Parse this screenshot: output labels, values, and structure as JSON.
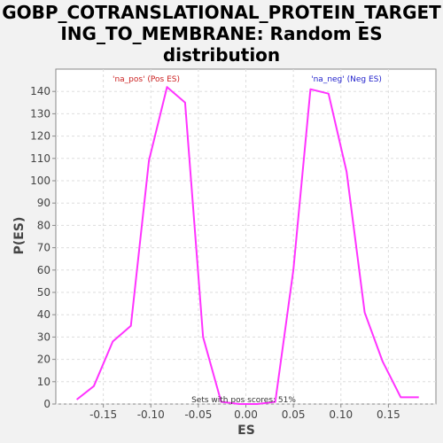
{
  "title_line1": "GOBP_COTRANSLATIONAL_PROTEIN_TARGET",
  "title_line2": "ING_TO_MEMBRANE: Random ES",
  "title_line3": "distribution",
  "colors": {
    "line": "#ff33ff",
    "pos_label": "#cc2222",
    "neg_label": "#2222cc",
    "plot_bg": "#ffffff",
    "page_bg": "#f2f2f2",
    "grid": "#dddddd"
  },
  "chart_data": {
    "type": "line",
    "title": "GOBP_COTRANSLATIONAL_PROTEIN_TARGETING_TO_MEMBRANE: Random ES distribution",
    "xlabel": "ES",
    "ylabel": "P(ES)",
    "xlim": [
      -0.2,
      0.2
    ],
    "ylim": [
      0,
      150
    ],
    "x_ticks": [
      -0.15,
      -0.1,
      -0.05,
      0.0,
      0.05,
      0.1,
      0.15
    ],
    "x_tick_labels": [
      "-0.15",
      "-0.10",
      "-0.05",
      "0.00",
      "0.05",
      "0.10",
      "0.15"
    ],
    "y_ticks": [
      0,
      10,
      20,
      30,
      40,
      50,
      60,
      70,
      80,
      90,
      100,
      110,
      120,
      130,
      140
    ],
    "y_tick_labels": [
      "0",
      "10",
      "20",
      "30",
      "40",
      "50",
      "60",
      "70",
      "80",
      "90",
      "100",
      "110",
      "120",
      "130",
      "140"
    ],
    "grid": true,
    "series": [
      {
        "x": [
          -0.178,
          -0.16,
          -0.14,
          -0.121,
          -0.102,
          -0.083,
          -0.064,
          -0.045,
          -0.026,
          -0.007,
          0.012,
          0.031,
          0.05,
          0.068,
          0.087,
          0.106,
          0.125,
          0.144,
          0.163,
          0.182
        ],
        "y": [
          2,
          8,
          28,
          35,
          109,
          142,
          135,
          30,
          1,
          0,
          0,
          1,
          60,
          141,
          139,
          104,
          41,
          19,
          3,
          3
        ]
      }
    ],
    "annotations": {
      "pos_label": "'na_pos' (Pos ES)",
      "neg_label": "'na_neg' (Neg ES)",
      "bottom_note": "Sets with pos scores: 51%"
    }
  }
}
